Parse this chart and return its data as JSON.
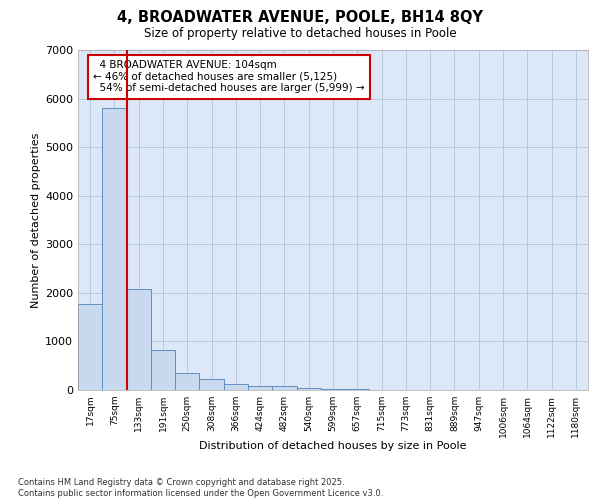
{
  "title_line1": "4, BROADWATER AVENUE, POOLE, BH14 8QY",
  "title_line2": "Size of property relative to detached houses in Poole",
  "xlabel": "Distribution of detached houses by size in Poole",
  "ylabel": "Number of detached properties",
  "categories": [
    "17sqm",
    "75sqm",
    "133sqm",
    "191sqm",
    "250sqm",
    "308sqm",
    "366sqm",
    "424sqm",
    "482sqm",
    "540sqm",
    "599sqm",
    "657sqm",
    "715sqm",
    "773sqm",
    "831sqm",
    "889sqm",
    "947sqm",
    "1006sqm",
    "1064sqm",
    "1122sqm",
    "1180sqm"
  ],
  "values": [
    1780,
    5800,
    2080,
    820,
    360,
    220,
    120,
    80,
    80,
    50,
    30,
    30,
    0,
    0,
    0,
    0,
    0,
    0,
    0,
    0,
    0
  ],
  "bar_color": "#c8d8ee",
  "bar_edge_color": "#6090c0",
  "ylim": [
    0,
    7000
  ],
  "yticks": [
    0,
    1000,
    2000,
    3000,
    4000,
    5000,
    6000,
    7000
  ],
  "property_size_label": "4 BROADWATER AVENUE: 104sqm",
  "smaller_pct": 46,
  "smaller_count": 5125,
  "larger_pct": 54,
  "larger_count": 5999,
  "vline_color": "#cc0000",
  "annotation_box_color": "#cc0000",
  "bg_color": "#dce8f8",
  "grid_color": "#b8c8e0",
  "footer_line1": "Contains HM Land Registry data © Crown copyright and database right 2025.",
  "footer_line2": "Contains public sector information licensed under the Open Government Licence v3.0."
}
